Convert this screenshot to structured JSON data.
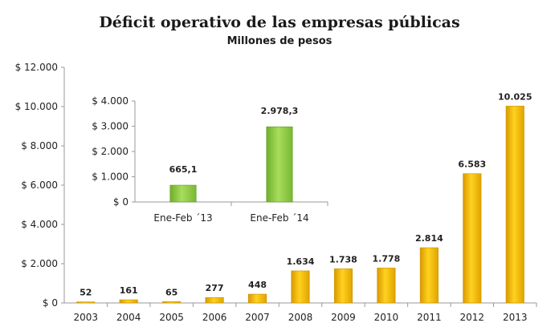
{
  "chart_data": [
    {
      "type": "bar",
      "title": "Déficit operativo de las empresas públicas",
      "subtitle": "Millones de pesos",
      "categories": [
        "2003",
        "2004",
        "2005",
        "2006",
        "2007",
        "2008",
        "2009",
        "2010",
        "2011",
        "2012",
        "2013"
      ],
      "values": [
        52,
        161,
        65,
        277,
        448,
        1634,
        1738,
        1778,
        2814,
        6583,
        10025
      ],
      "value_labels": [
        "52",
        "161",
        "65",
        "277",
        "448",
        "1.634",
        "1.738",
        "1.778",
        "2.814",
        "6.583",
        "10.025"
      ],
      "ylim": [
        0,
        12000
      ],
      "yticks": [
        "$ 0",
        "$ 2.000",
        "$ 4.000",
        "$ 6.000",
        "$ 8.000",
        "$ 10.000",
        "$ 12.000"
      ],
      "ytick_values": [
        0,
        2000,
        4000,
        6000,
        8000,
        10000,
        12000
      ],
      "color": "#f5b800",
      "grid": false
    },
    {
      "type": "bar",
      "categories": [
        "Ene-Feb ´13",
        "Ene-Feb ´14"
      ],
      "values": [
        665.1,
        2978.3
      ],
      "value_labels": [
        "665,1",
        "2.978,3"
      ],
      "ylim": [
        0,
        4000
      ],
      "yticks": [
        "$ 0",
        "$ 1.000",
        "$ 2.000",
        "$ 3.000",
        "$ 4.000"
      ],
      "ytick_values": [
        0,
        1000,
        2000,
        3000,
        4000
      ],
      "color": "#8cc63f",
      "grid": false
    }
  ]
}
